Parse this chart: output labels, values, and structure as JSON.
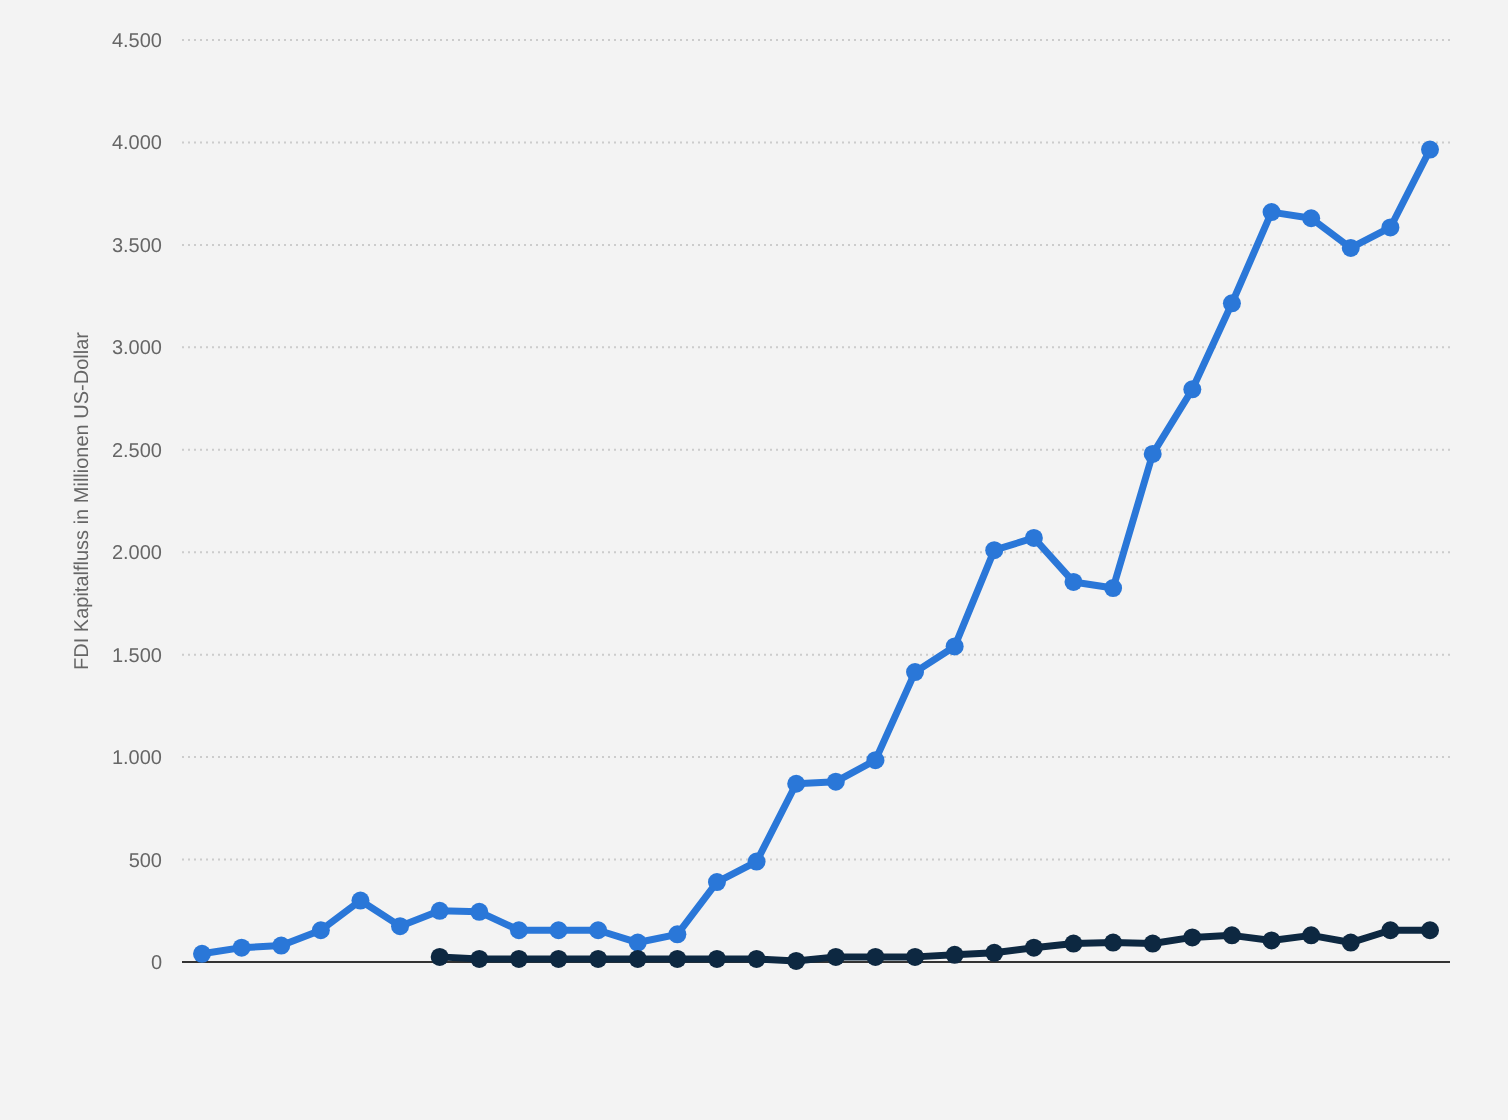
{
  "chart_data": {
    "type": "line",
    "ylabel": "FDI Kapitalfluss in Millionen US-Dollar",
    "categories": [
      null,
      null,
      null,
      null,
      null,
      null,
      null,
      null,
      null,
      null,
      null,
      null,
      null,
      null,
      null,
      null,
      null,
      null,
      null,
      null,
      null,
      null,
      null,
      null,
      null,
      null,
      null,
      null,
      null,
      null,
      null,
      null
    ],
    "series": [
      {
        "color": "#2a77d8",
        "values": [
          40,
          70,
          80,
          155,
          300,
          175,
          250,
          245,
          155,
          155,
          155,
          95,
          135,
          390,
          490,
          870,
          880,
          985,
          1415,
          1540,
          2010,
          2070,
          1855,
          1825,
          2480,
          2795,
          3215,
          3660,
          3630,
          3485,
          3585,
          3965
        ]
      },
      {
        "color": "#0d2841",
        "values": [
          null,
          null,
          null,
          null,
          null,
          null,
          25,
          15,
          15,
          15,
          15,
          15,
          15,
          15,
          15,
          5,
          25,
          25,
          25,
          35,
          45,
          70,
          90,
          95,
          90,
          120,
          130,
          105,
          130,
          95,
          155,
          155
        ]
      }
    ],
    "ylim": [
      0,
      4500
    ],
    "yticks": [
      {
        "value": 0,
        "label": "0"
      },
      {
        "value": 500,
        "label": "500"
      },
      {
        "value": 1000,
        "label": "1.000"
      },
      {
        "value": 1500,
        "label": "1.500"
      },
      {
        "value": 2000,
        "label": "2.000"
      },
      {
        "value": 2500,
        "label": "2.500"
      },
      {
        "value": 3000,
        "label": "3.000"
      },
      {
        "value": 3500,
        "label": "3.500"
      },
      {
        "value": 4000,
        "label": "4.000"
      },
      {
        "value": 4500,
        "label": "4.500"
      }
    ],
    "grid": "y",
    "marker": "circle",
    "line_style": "solid",
    "tick_labels": "y"
  }
}
